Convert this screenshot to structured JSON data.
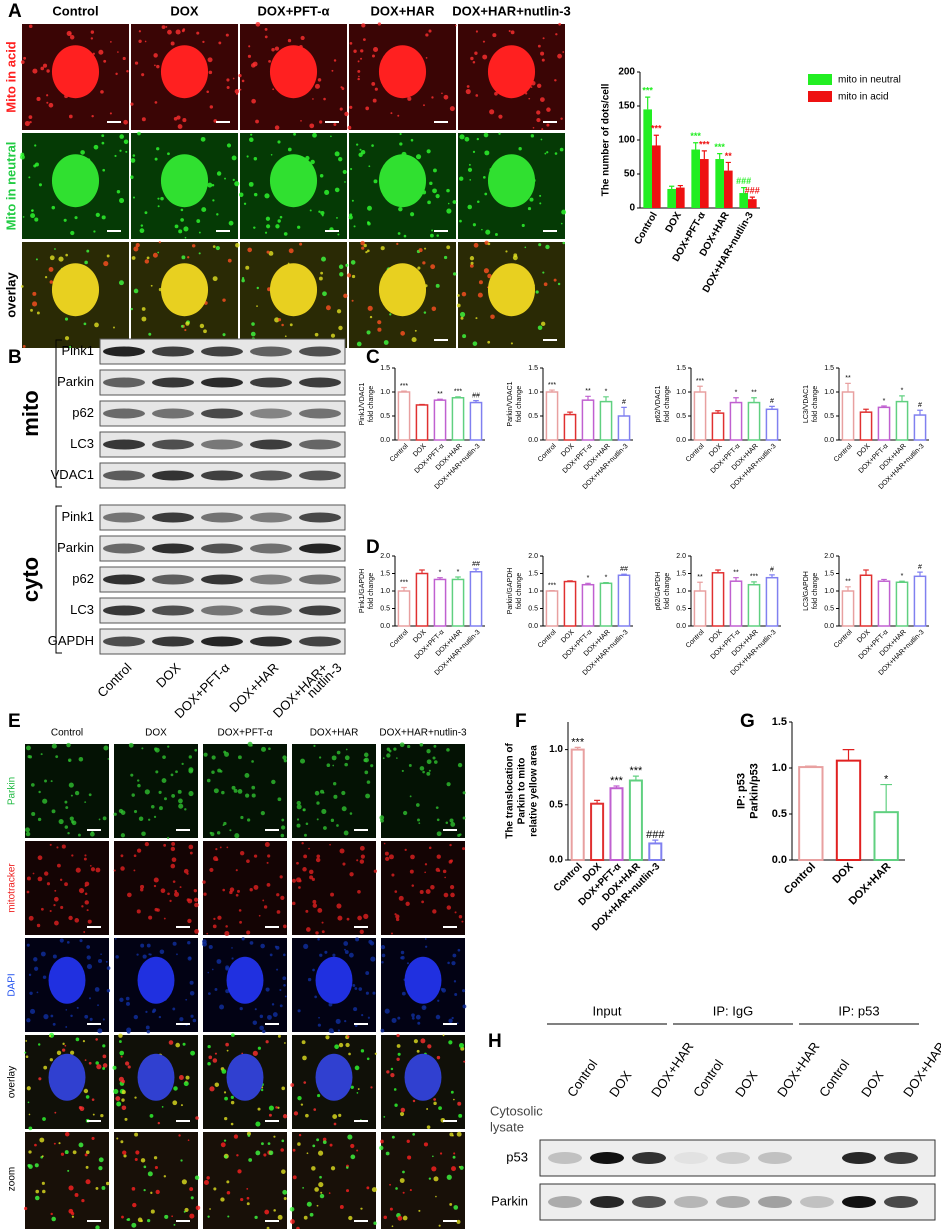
{
  "panel_labels": [
    "A",
    "B",
    "C",
    "D",
    "E",
    "F",
    "G",
    "H"
  ],
  "panel_a": {
    "columns": [
      "Control",
      "DOX",
      "DOX+PFT-α",
      "DOX+HAR",
      "DOX+HAR+nutlin-3"
    ],
    "rows": [
      "Mito in acid",
      "Mito in neutral",
      "overlay"
    ]
  },
  "panel_b": {
    "groups": [
      {
        "name": "mito",
        "bands": [
          "Pink1",
          "Parkin",
          "p62",
          "LC3",
          "VDAC1"
        ]
      },
      {
        "name": "cyto",
        "bands": [
          "Pink1",
          "Parkin",
          "p62",
          "LC3",
          "GAPDH"
        ]
      }
    ],
    "lane_lines": [
      [
        "Control"
      ],
      [
        "DOX"
      ],
      [
        "DOX+PFT-α"
      ],
      [
        "DOX+HAR"
      ],
      [
        "DOX+HAR+",
        "nutlin-3"
      ]
    ]
  },
  "panel_e": {
    "columns": [
      "Control",
      "DOX",
      "DOX+PFT-α",
      "DOX+HAR",
      "DOX+HAR+nutlin-3"
    ],
    "rows": [
      "Parkin",
      "mitotracker",
      "DAPI",
      "overlay",
      "zoom"
    ]
  },
  "panel_h": {
    "groups": [
      "Input",
      "IP: IgG",
      "IP: p53"
    ],
    "lanes": [
      "Control",
      "DOX",
      "DOX+HAR",
      "Control",
      "DOX",
      "DOX+HAR",
      "Control",
      "DOX",
      "DOX+HAR"
    ],
    "row_header": [
      "Cytosolic",
      "lysate"
    ],
    "bands": [
      "p53",
      "Parkin"
    ]
  },
  "chart_data": [
    {
      "type": "bar",
      "ylabel": [
        "The number of dots/cell"
      ],
      "categories": [
        "Control",
        "DOX",
        "DOX+PFT-α",
        "DOX+HAR",
        "DOX+HAR+nutlin-3"
      ],
      "series": [
        {
          "name": "mito in neutral",
          "color": "#22ee22",
          "values": [
            145,
            28,
            86,
            72,
            22
          ],
          "errors": [
            18,
            4,
            10,
            8,
            8
          ],
          "annotations": [
            "***",
            null,
            "***",
            "***",
            "###"
          ]
        },
        {
          "name": "mito in acid",
          "color": "#ee1111",
          "values": [
            92,
            30,
            72,
            55,
            13
          ],
          "errors": [
            15,
            3,
            12,
            12,
            3
          ],
          "annotations": [
            "***",
            null,
            "***",
            "**",
            "###"
          ]
        }
      ],
      "ylim": [
        0,
        200
      ],
      "yticks": [
        0,
        50,
        100,
        150,
        200
      ]
    },
    {
      "type": "bar",
      "ylabel": [
        "Pink1/VDAC1",
        "fold change"
      ],
      "categories": [
        "Control",
        "DOX",
        "DOX+PFT-α",
        "DOX+HAR",
        "DOX+HAR+nutlin-3"
      ],
      "colors": [
        "#e8a0a0",
        "#e03030",
        "#c060d0",
        "#60d080",
        "#8080f0"
      ],
      "values": [
        1.0,
        0.73,
        0.83,
        0.88,
        0.78
      ],
      "errors": [
        0.02,
        0.01,
        0.02,
        0.02,
        0.04
      ],
      "annotations": [
        "***",
        null,
        "**",
        "***",
        "##"
      ],
      "ylim": [
        0,
        1.5
      ],
      "yticks": [
        {
          "value": 0,
          "label": "0.0"
        },
        0.5,
        {
          "value": 1,
          "label": "1.0"
        },
        1.5
      ]
    },
    {
      "type": "bar",
      "ylabel": [
        "Parkin/VDAC1",
        "fold change"
      ],
      "categories": [
        "Control",
        "DOX",
        "DOX+PFT-α",
        "DOX+HAR",
        "DOX+HAR+nutlin-3"
      ],
      "colors": [
        "#e8a0a0",
        "#e03030",
        "#c060d0",
        "#60d080",
        "#8080f0"
      ],
      "values": [
        1.0,
        0.53,
        0.83,
        0.8,
        0.5
      ],
      "errors": [
        0.04,
        0.05,
        0.08,
        0.1,
        0.18
      ],
      "annotations": [
        "***",
        null,
        "**",
        "*",
        "#"
      ],
      "ylim": [
        0,
        1.5
      ],
      "yticks": [
        {
          "value": 0,
          "label": "0.0"
        },
        0.5,
        {
          "value": 1,
          "label": "1.0"
        },
        1.5
      ]
    },
    {
      "type": "bar",
      "ylabel": [
        "p62/VDAC1",
        "fold change"
      ],
      "categories": [
        "Control",
        "DOX",
        "DOX+PFT-α",
        "DOX+HAR",
        "DOX+HAR+nutlin-3"
      ],
      "colors": [
        "#e8a0a0",
        "#e03030",
        "#c060d0",
        "#60d080",
        "#8080f0"
      ],
      "values": [
        1.0,
        0.56,
        0.78,
        0.78,
        0.64
      ],
      "errors": [
        0.12,
        0.05,
        0.1,
        0.1,
        0.06
      ],
      "annotations": [
        "***",
        null,
        "*",
        "**",
        "#"
      ],
      "ylim": [
        0,
        1.5
      ],
      "yticks": [
        {
          "value": 0,
          "label": "0.0"
        },
        0.5,
        {
          "value": 1,
          "label": "1.0"
        },
        1.5
      ]
    },
    {
      "type": "bar",
      "ylabel": [
        "LC3/VDAC1",
        "fold change"
      ],
      "categories": [
        "Control",
        "DOX",
        "DOX+PFT-α",
        "DOX+HAR",
        "DOX+HAR+nutlin-3"
      ],
      "colors": [
        "#e8a0a0",
        "#e03030",
        "#c060d0",
        "#60d080",
        "#8080f0"
      ],
      "values": [
        1.0,
        0.58,
        0.68,
        0.8,
        0.52
      ],
      "errors": [
        0.18,
        0.06,
        0.03,
        0.12,
        0.1
      ],
      "annotations": [
        "**",
        null,
        "*",
        "*",
        "#"
      ],
      "ylim": [
        0,
        1.5
      ],
      "yticks": [
        {
          "value": 0,
          "label": "0.0"
        },
        0.5,
        {
          "value": 1,
          "label": "1.0"
        },
        1.5
      ]
    },
    {
      "type": "bar",
      "ylabel": [
        "Pink1/GAPDH",
        "fold change"
      ],
      "categories": [
        "Control",
        "DOX",
        "DOX+PFT-α",
        "DOX+HAR",
        "DOX+HAR+nutlin-3"
      ],
      "colors": [
        "#e8a0a0",
        "#e03030",
        "#c060d0",
        "#60d080",
        "#8080f0"
      ],
      "values": [
        1.0,
        1.5,
        1.33,
        1.33,
        1.55
      ],
      "errors": [
        0.1,
        0.1,
        0.05,
        0.07,
        0.08
      ],
      "annotations": [
        "***",
        null,
        "*",
        "*",
        "##"
      ],
      "ylim": [
        0,
        2
      ],
      "yticks": [
        {
          "value": 0,
          "label": "0.0"
        },
        0.5,
        {
          "value": 1,
          "label": "1.0"
        },
        1.5,
        {
          "value": 2,
          "label": "2.0"
        }
      ]
    },
    {
      "type": "bar",
      "ylabel": [
        "Parkin/GAPDH",
        "fold change"
      ],
      "categories": [
        "Control",
        "DOX",
        "DOX+PFT-α",
        "DOX+HAR",
        "DOX+HAR+nutlin-3"
      ],
      "colors": [
        "#e8a0a0",
        "#e03030",
        "#c060d0",
        "#60d080",
        "#8080f0"
      ],
      "values": [
        1.0,
        1.27,
        1.18,
        1.22,
        1.45
      ],
      "errors": [
        0.01,
        0.02,
        0.04,
        0.02,
        0.03
      ],
      "annotations": [
        "***",
        null,
        "*",
        "*",
        "##"
      ],
      "ylim": [
        0,
        2
      ],
      "yticks": [
        {
          "value": 0,
          "label": "0.0"
        },
        0.5,
        {
          "value": 1,
          "label": "1.0"
        },
        1.5,
        {
          "value": 2,
          "label": "2.0"
        }
      ]
    },
    {
      "type": "bar",
      "ylabel": [
        "p62/GAPDH",
        "fold change"
      ],
      "categories": [
        "Control",
        "DOX",
        "DOX+PFT-α",
        "DOX+HAR",
        "DOX+HAR+nutlin-3"
      ],
      "colors": [
        "#e8a0a0",
        "#e03030",
        "#c060d0",
        "#60d080",
        "#8080f0"
      ],
      "values": [
        1.0,
        1.52,
        1.28,
        1.18,
        1.38
      ],
      "errors": [
        0.25,
        0.08,
        0.1,
        0.08,
        0.08
      ],
      "annotations": [
        "**",
        null,
        "**",
        "***",
        "#"
      ],
      "ylim": [
        0,
        2
      ],
      "yticks": [
        {
          "value": 0,
          "label": "0.0"
        },
        0.5,
        {
          "value": 1,
          "label": "1.0"
        },
        1.5,
        {
          "value": 2,
          "label": "2.0"
        }
      ]
    },
    {
      "type": "bar",
      "ylabel": [
        "LC3/GAPDH",
        "fold change"
      ],
      "categories": [
        "Control",
        "DOX",
        "DOX+PFT-α",
        "DOX+HAR",
        "DOX+HAR+nutlin-3"
      ],
      "colors": [
        "#e8a0a0",
        "#e03030",
        "#c060d0",
        "#60d080",
        "#8080f0"
      ],
      "values": [
        1.0,
        1.45,
        1.28,
        1.25,
        1.42
      ],
      "errors": [
        0.12,
        0.15,
        0.05,
        0.03,
        0.12
      ],
      "annotations": [
        "**",
        null,
        null,
        "*",
        "#"
      ],
      "ylim": [
        0,
        2
      ],
      "yticks": [
        {
          "value": 0,
          "label": "0.0"
        },
        0.5,
        {
          "value": 1,
          "label": "1.0"
        },
        1.5,
        {
          "value": 2,
          "label": "2.0"
        }
      ]
    },
    {
      "type": "bar",
      "ylabel": [
        "The translocation of",
        "Parkin to mito",
        "relative yellow area"
      ],
      "categories": [
        "Control",
        "DOX",
        "DOX+PFT-α",
        "DOX+HAR",
        "DOX+HAR+nutlin-3"
      ],
      "colors": [
        "#e8a0a0",
        "#e03030",
        "#c060d0",
        "#60d080",
        "#8080f0"
      ],
      "values": [
        1.0,
        0.51,
        0.65,
        0.72,
        0.15
      ],
      "errors": [
        0.02,
        0.03,
        0.02,
        0.04,
        0.03
      ],
      "annotations": [
        "***",
        null,
        "***",
        "***",
        "###"
      ],
      "ylim": [
        0,
        1.25
      ],
      "yticks": [
        {
          "value": 0,
          "label": "0.0"
        },
        0.5,
        {
          "value": 1,
          "label": "1.0"
        }
      ]
    },
    {
      "type": "bar",
      "ylabel": [
        "IP: p53",
        "Parkin/p53"
      ],
      "categories": [
        "Control",
        "DOX",
        "DOX+HAR"
      ],
      "colors": [
        "#e8a0a0",
        "#e02020",
        "#60d080"
      ],
      "values": [
        1.01,
        1.08,
        0.52
      ],
      "errors": [
        0.01,
        0.12,
        0.3
      ],
      "annotations": [
        null,
        null,
        "*"
      ],
      "ylim": [
        0,
        1.5
      ],
      "yticks": [
        {
          "value": 0,
          "label": "0.0"
        },
        0.5,
        {
          "value": 1,
          "label": "1.0"
        },
        1.5
      ]
    }
  ]
}
